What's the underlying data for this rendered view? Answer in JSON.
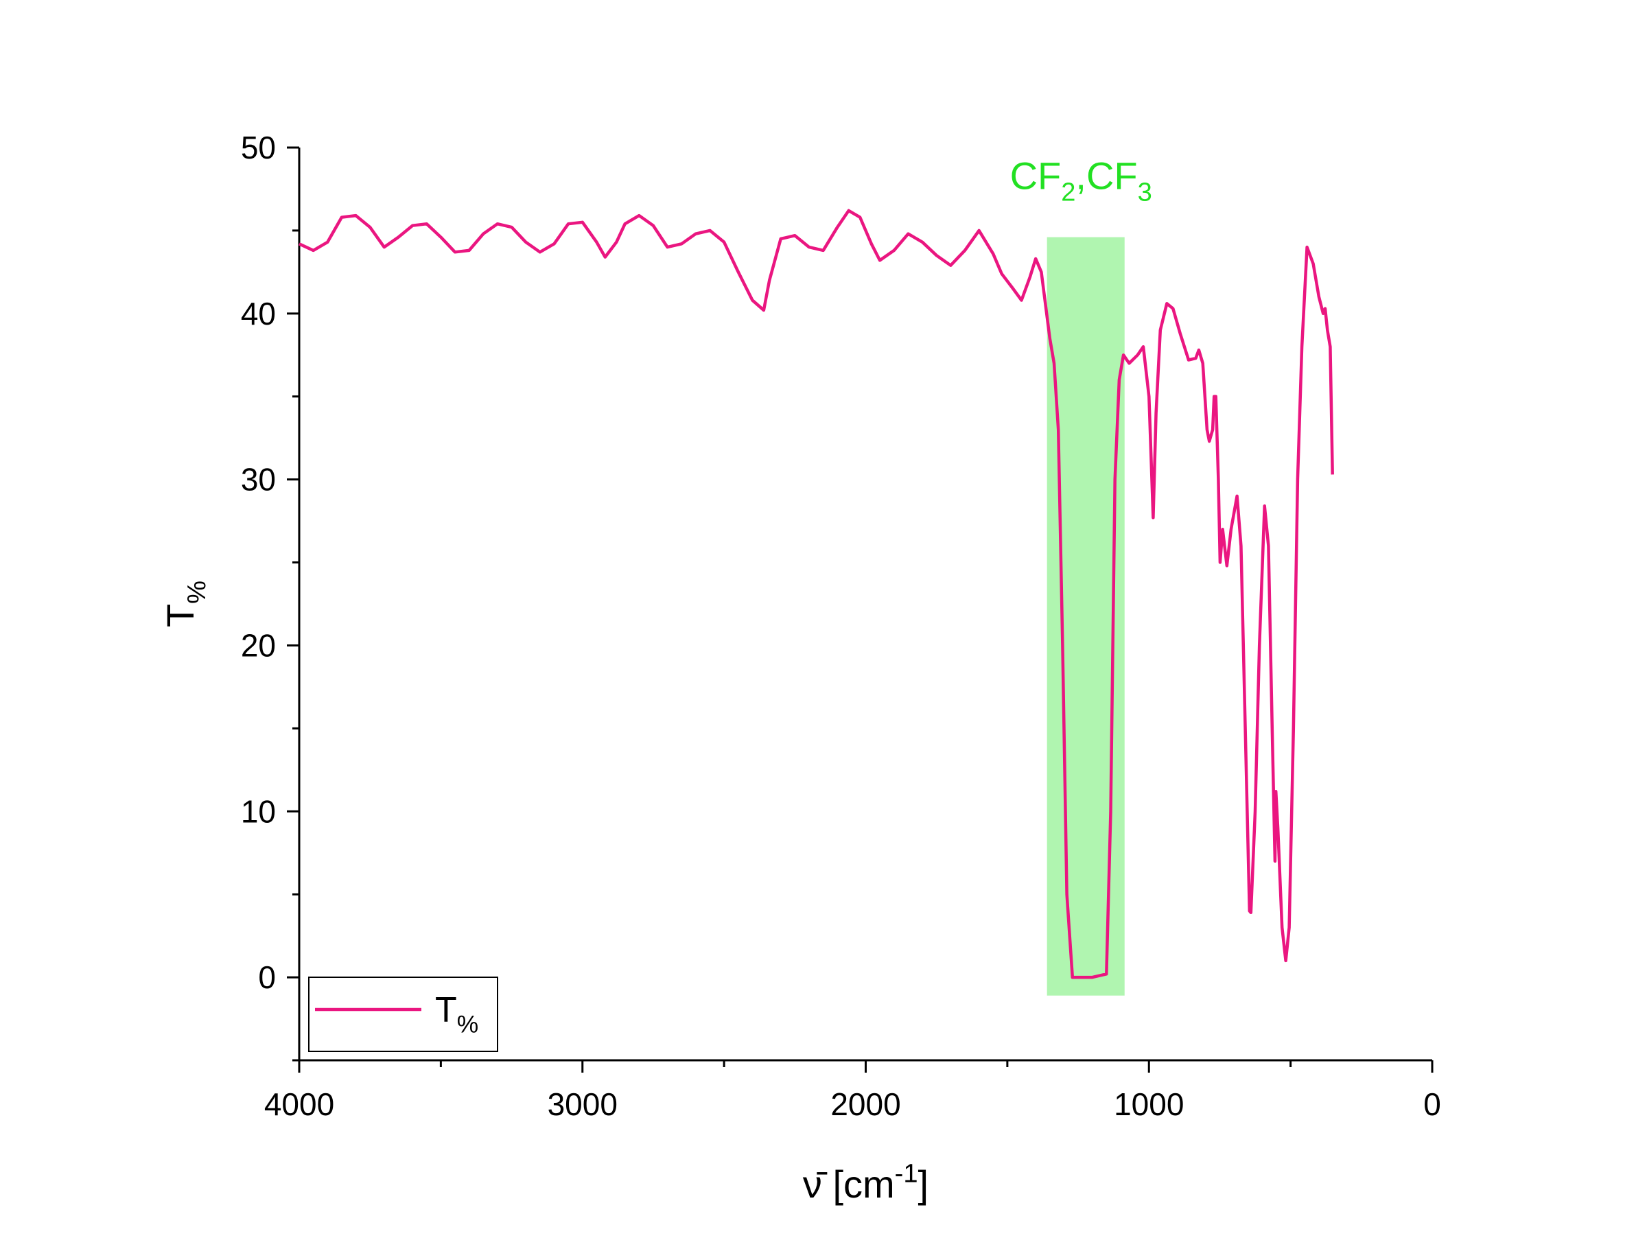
{
  "chart_data": {
    "type": "line",
    "xlabel": {
      "text": [
        "ν̄ [cm",
        "-1",
        "]"
      ],
      "shift": [
        "normal",
        "super",
        "normal"
      ]
    },
    "ylabel": {
      "text": [
        "T",
        "%"
      ],
      "shift": [
        "normal",
        "sub"
      ]
    },
    "annotation": {
      "text": [
        "CF",
        "2",
        ",CF",
        "3"
      ],
      "shift": [
        "normal",
        "sub",
        "normal",
        "sub"
      ],
      "color": "#22e022",
      "x": 1240,
      "y": 47.5
    },
    "highlight": {
      "x": [
        1360,
        1086
      ],
      "y": [
        -1.1,
        44.6
      ],
      "color": "#b0f5b0"
    },
    "xlim": [
      4000,
      0
    ],
    "ylim": [
      -5,
      50
    ],
    "xticks": [
      4000,
      3000,
      2000,
      1000,
      0
    ],
    "yticks": [
      0,
      10,
      20,
      30,
      40,
      50
    ],
    "xminor": [
      3500,
      2500,
      1500,
      500
    ],
    "yminor": [
      -5,
      5,
      15,
      25,
      35,
      45
    ],
    "legend": "lower left",
    "x": [
      4000,
      3950,
      3900,
      3850,
      3800,
      3750,
      3700,
      3650,
      3600,
      3550,
      3500,
      3450,
      3400,
      3350,
      3300,
      3250,
      3200,
      3150,
      3100,
      3050,
      3000,
      2950,
      2920,
      2880,
      2850,
      2800,
      2750,
      2700,
      2650,
      2600,
      2550,
      2500,
      2450,
      2400,
      2360,
      2340,
      2300,
      2250,
      2200,
      2150,
      2100,
      2060,
      2020,
      1980,
      1950,
      1900,
      1850,
      1800,
      1750,
      1700,
      1650,
      1600,
      1550,
      1520,
      1480,
      1450,
      1420,
      1400,
      1380,
      1350,
      1335,
      1320,
      1305,
      1290,
      1270,
      1200,
      1150,
      1135,
      1120,
      1105,
      1090,
      1070,
      1040,
      1020,
      1000,
      985,
      975,
      960,
      937,
      915,
      890,
      860,
      835,
      824,
      810,
      795,
      787,
      775,
      770,
      764,
      755,
      749,
      740,
      725,
      710,
      689,
      675,
      660,
      645,
      640,
      625,
      610,
      592,
      578,
      565,
      555,
      552,
      545,
      530,
      517,
      505,
      490,
      475,
      460,
      442,
      420,
      400,
      385,
      378,
      370,
      360,
      352
    ],
    "series": [
      {
        "name": {
          "text": [
            "T",
            "%"
          ],
          "shift": [
            "normal",
            "sub"
          ]
        },
        "color": "#ea1680",
        "values": [
          44.2,
          43.8,
          44.3,
          45.8,
          45.9,
          45.2,
          44.0,
          44.6,
          45.3,
          45.4,
          44.6,
          43.7,
          43.8,
          44.8,
          45.4,
          45.2,
          44.3,
          43.7,
          44.2,
          45.4,
          45.5,
          44.3,
          43.4,
          44.3,
          45.4,
          45.9,
          45.3,
          44.0,
          44.2,
          44.8,
          45.0,
          44.3,
          42.5,
          40.8,
          40.2,
          42.0,
          44.5,
          44.7,
          44.0,
          43.8,
          45.2,
          46.2,
          45.8,
          44.2,
          43.2,
          43.8,
          44.8,
          44.3,
          43.5,
          42.9,
          43.8,
          45.0,
          43.6,
          42.4,
          41.5,
          40.8,
          42.2,
          43.3,
          42.5,
          38.5,
          37.0,
          33.0,
          20.0,
          5.0,
          0.0,
          0.0,
          0.2,
          10.0,
          30.0,
          36.0,
          37.5,
          37.0,
          37.5,
          38.0,
          35.0,
          27.7,
          34.0,
          39.0,
          40.6,
          40.3,
          38.8,
          37.2,
          37.3,
          37.8,
          37.0,
          33.0,
          32.3,
          33.0,
          35.0,
          35.0,
          30.0,
          25.0,
          27.0,
          24.8,
          27.0,
          29.0,
          26.0,
          15.0,
          4.0,
          3.9,
          10.0,
          20.0,
          28.4,
          26.0,
          15.0,
          7.0,
          11.2,
          9.0,
          3.0,
          1.0,
          3.0,
          15.0,
          30.0,
          38.0,
          44.0,
          43.0,
          41.0,
          40.0,
          40.3,
          39.0,
          38.0,
          30.3
        ]
      }
    ]
  }
}
